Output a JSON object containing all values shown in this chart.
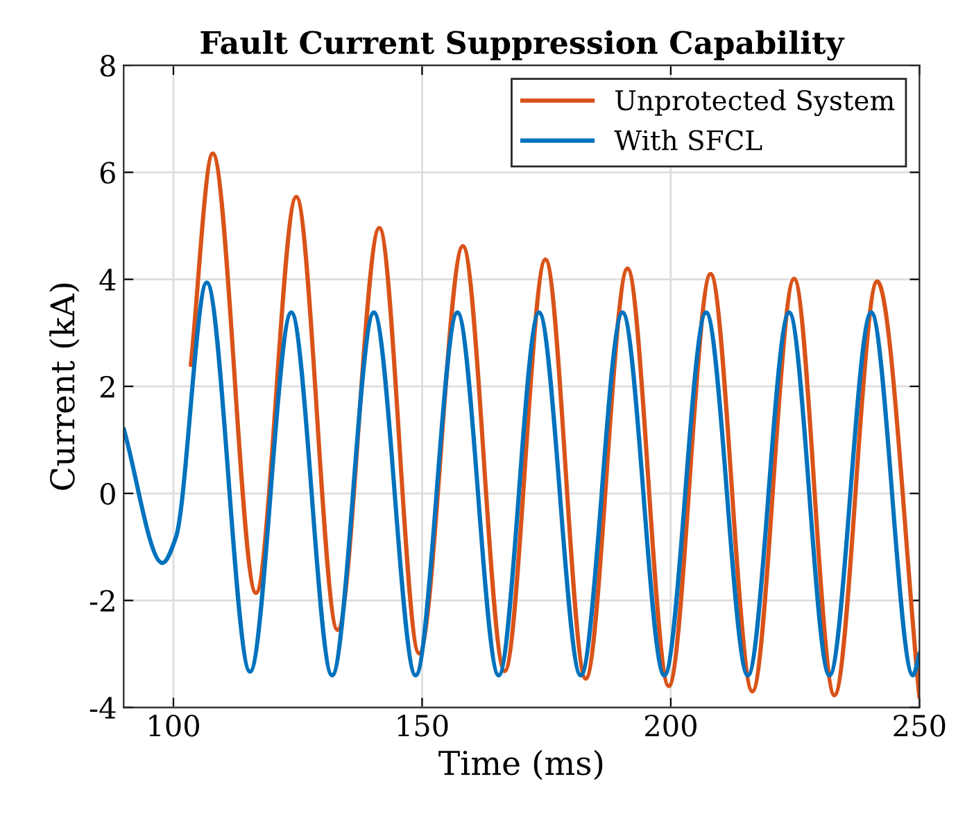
{
  "chart_data": {
    "type": "line",
    "title": "Fault Current Suppression Capability",
    "xlabel": "Time (ms)",
    "ylabel": "Current (kA)",
    "xlim": [
      90,
      250
    ],
    "xticks": [
      100,
      150,
      200,
      250
    ],
    "ylim": [
      -4,
      8
    ],
    "yticks": [
      -4,
      -2,
      0,
      2,
      4,
      6,
      8
    ],
    "grid": true,
    "legend": "top right",
    "line_style": "solid",
    "marker": "none",
    "series": [
      {
        "name": "Unprotected System",
        "color": "#d95319",
        "x": [
          103.5,
          107.9,
          116.6,
          124.7,
          133.0,
          141.4,
          149.4,
          158.2,
          166.6,
          174.8,
          182.9,
          191.3,
          199.6,
          208.0,
          216.4,
          224.8,
          232.9,
          241.5,
          250
        ],
        "values": [
          2.4,
          6.35,
          -1.86,
          5.54,
          -2.55,
          4.96,
          -2.99,
          4.62,
          -3.32,
          4.37,
          -3.46,
          4.2,
          -3.6,
          4.1,
          -3.7,
          4.01,
          -3.77,
          3.96,
          -3.81
        ]
      },
      {
        "name": "With SFCL",
        "color": "#0072bd",
        "x": [
          90,
          97.8,
          100.5,
          106.7,
          115.4,
          123.7,
          131.9,
          140.3,
          148.7,
          157.1,
          165.4,
          173.5,
          181.9,
          190.3,
          198.7,
          207.1,
          215.5,
          223.8,
          231.9,
          240.3,
          248.7,
          250
        ],
        "values": [
          1.21,
          -1.3,
          -0.82,
          3.94,
          -3.33,
          3.38,
          -3.4,
          3.38,
          -3.4,
          3.38,
          -3.4,
          3.38,
          -3.4,
          3.38,
          -3.4,
          3.38,
          -3.4,
          3.38,
          -3.4,
          3.38,
          -3.4,
          -2.99
        ]
      }
    ]
  }
}
